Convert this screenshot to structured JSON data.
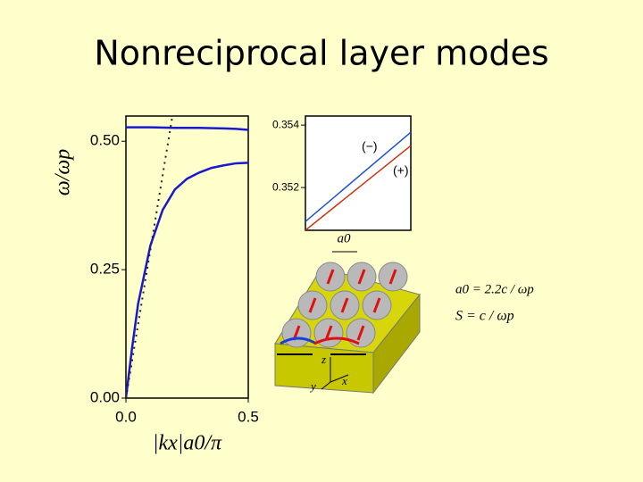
{
  "title": "Nonreciprocal layer modes",
  "chart_data": [
    {
      "type": "line",
      "x_label": "|kx|a0/π",
      "y_label": "ω/ωp",
      "xlim": [
        0,
        0.5
      ],
      "ylim": [
        0,
        0.549
      ],
      "xticks": [
        {
          "value": 0,
          "label": "0.0"
        },
        {
          "value": 0.5,
          "label": "0.5"
        }
      ],
      "yticks": [
        {
          "value": 0,
          "label": "0.00"
        },
        {
          "value": 0.25,
          "label": "0.25"
        },
        {
          "value": 0.5,
          "label": "0.50"
        }
      ],
      "series": [
        {
          "color": "#1a1acc",
          "x": [
            0,
            0.1,
            0.2,
            0.3,
            0.4,
            0.45,
            0.5
          ],
          "values": [
            0.527,
            0.527,
            0.526,
            0.526,
            0.525,
            0.524,
            0.522
          ]
        },
        {
          "color": "#1a1acc",
          "x": [
            0,
            0.025,
            0.05,
            0.1,
            0.15,
            0.2,
            0.25,
            0.3,
            0.35,
            0.4,
            0.45,
            0.5
          ],
          "values": [
            0,
            0.097,
            0.184,
            0.297,
            0.366,
            0.406,
            0.427,
            0.439,
            0.448,
            0.453,
            0.457,
            0.458
          ]
        },
        {
          "color": "#222222",
          "dash": "dotted",
          "x": [
            0,
            0.19
          ],
          "values": [
            0,
            0.549
          ]
        }
      ]
    },
    {
      "type": "line",
      "xlim": [
        0,
        1
      ],
      "ylim": [
        0.35063,
        0.35429
      ],
      "yticks": [
        0.352,
        0.354
      ],
      "series": [
        {
          "name": "(−)",
          "color": "#1a4fd6",
          "x": [
            0,
            1
          ],
          "values": [
            0.35091,
            0.35377
          ]
        },
        {
          "name": "(+)",
          "color": "#cc3311",
          "x": [
            0,
            1
          ],
          "values": [
            0.35063,
            0.35334
          ]
        }
      ]
    }
  ],
  "diagram": {
    "spacing_label": "a0",
    "axes": [
      "z",
      "y",
      "x"
    ]
  },
  "formulas": [
    "a0 = 2.2c / ωp",
    "S = c / ωp"
  ]
}
